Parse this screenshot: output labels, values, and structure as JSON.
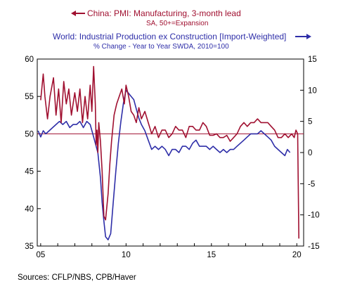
{
  "chart_data": {
    "type": "line",
    "title": "",
    "legend": {
      "placement": "top",
      "entries": [
        {
          "name": "China: PMI: Manufacturing, 3-month lead",
          "subtitle": "SA, 50+=Expansion",
          "color": "#a01030",
          "arrow": "left",
          "axis": "left"
        },
        {
          "name": "World: Industrial Production ex Construction [Import-Weighted]",
          "subtitle": "% Change - Year to Year   SWDA, 2010=100",
          "color": "#2e2ea8",
          "arrow": "right",
          "axis": "right"
        }
      ]
    },
    "x_axis": {
      "ticks": [
        "05",
        "10",
        "15",
        "20"
      ],
      "tick_values": [
        2005,
        2010,
        2015,
        2020
      ],
      "range": [
        2004.8,
        2020.4
      ]
    },
    "y_left": {
      "range": [
        35,
        60
      ],
      "ticks": [
        35,
        40,
        45,
        50,
        55,
        60
      ]
    },
    "y_right": {
      "range": [
        -15,
        15
      ],
      "ticks": [
        -15,
        -10,
        -5,
        0,
        5,
        10,
        15
      ]
    },
    "reference_line": {
      "axis": "left",
      "value": 50,
      "color": "#a01030"
    },
    "series": [
      {
        "name": "China: PMI: Manufacturing, 3-month lead",
        "axis": "left",
        "color": "#a01030",
        "x": [
          2005.0,
          2005.15,
          2005.25,
          2005.4,
          2005.55,
          2005.75,
          2005.9,
          2006.05,
          2006.2,
          2006.35,
          2006.5,
          2006.65,
          2006.8,
          2007.0,
          2007.15,
          2007.3,
          2007.45,
          2007.6,
          2007.75,
          2007.9,
          2008.0,
          2008.1,
          2008.2,
          2008.25,
          2008.3,
          2008.35,
          2008.4,
          2008.5,
          2008.6,
          2008.7,
          2008.8,
          2008.95,
          2009.05,
          2009.15,
          2009.3,
          2009.45,
          2009.6,
          2009.75,
          2009.9,
          2010.0,
          2010.15,
          2010.3,
          2010.45,
          2010.6,
          2010.75,
          2010.9,
          2011.1,
          2011.3,
          2011.5,
          2011.7,
          2011.9,
          2012.1,
          2012.3,
          2012.5,
          2012.7,
          2012.9,
          2013.1,
          2013.3,
          2013.5,
          2013.7,
          2013.9,
          2014.1,
          2014.3,
          2014.5,
          2014.7,
          2014.9,
          2015.1,
          2015.3,
          2015.5,
          2015.7,
          2015.9,
          2016.1,
          2016.3,
          2016.5,
          2016.7,
          2016.9,
          2017.1,
          2017.3,
          2017.5,
          2017.7,
          2017.9,
          2018.1,
          2018.3,
          2018.5,
          2018.7,
          2018.9,
          2019.1,
          2019.3,
          2019.5,
          2019.7,
          2019.85,
          2019.95,
          2020.05,
          2020.12
        ],
        "y": [
          54.5,
          58.0,
          55.0,
          52.0,
          55.0,
          57.5,
          52.5,
          56.0,
          51.5,
          57.0,
          54.0,
          56.0,
          52.5,
          55.5,
          53.0,
          56.0,
          51.5,
          55.0,
          52.0,
          56.5,
          53.0,
          59.0,
          54.0,
          48.5,
          50.5,
          47.5,
          51.5,
          49.0,
          45.0,
          39.0,
          38.5,
          42.0,
          46.0,
          49.0,
          52.5,
          54.0,
          55.0,
          56.0,
          54.0,
          56.5,
          55.0,
          53.0,
          52.5,
          51.5,
          53.5,
          52.0,
          53.0,
          51.5,
          50.0,
          51.0,
          49.5,
          50.5,
          50.5,
          49.5,
          50.0,
          51.0,
          50.5,
          50.5,
          49.5,
          51.0,
          51.0,
          50.5,
          50.5,
          51.5,
          51.0,
          49.8,
          49.8,
          50.0,
          49.5,
          49.5,
          49.8,
          49.0,
          49.5,
          50.0,
          51.0,
          51.5,
          51.0,
          51.5,
          51.5,
          52.0,
          51.5,
          51.5,
          51.5,
          51.0,
          50.5,
          49.5,
          49.5,
          50.0,
          49.5,
          50.0,
          49.5,
          50.5,
          50.0,
          36.0
        ]
      },
      {
        "name": "World: Industrial Production ex Construction [Import-Weighted]",
        "axis": "right",
        "color": "#2e2ea8",
        "x": [
          2004.85,
          2005.0,
          2005.15,
          2005.3,
          2005.5,
          2005.7,
          2005.9,
          2006.1,
          2006.3,
          2006.5,
          2006.7,
          2006.9,
          2007.1,
          2007.3,
          2007.5,
          2007.7,
          2007.9,
          2008.05,
          2008.2,
          2008.35,
          2008.5,
          2008.6,
          2008.7,
          2008.8,
          2008.95,
          2009.1,
          2009.25,
          2009.4,
          2009.55,
          2009.7,
          2009.85,
          2010.0,
          2010.15,
          2010.3,
          2010.45,
          2010.6,
          2010.75,
          2010.9,
          2011.1,
          2011.3,
          2011.5,
          2011.7,
          2011.9,
          2012.1,
          2012.3,
          2012.5,
          2012.7,
          2012.9,
          2013.1,
          2013.3,
          2013.5,
          2013.7,
          2013.9,
          2014.1,
          2014.3,
          2014.5,
          2014.7,
          2014.9,
          2015.1,
          2015.3,
          2015.5,
          2015.7,
          2015.9,
          2016.1,
          2016.3,
          2016.5,
          2016.7,
          2016.9,
          2017.1,
          2017.3,
          2017.5,
          2017.7,
          2017.9,
          2018.1,
          2018.3,
          2018.5,
          2018.7,
          2018.9,
          2019.1,
          2019.3,
          2019.45,
          2019.6
        ],
        "y": [
          3.5,
          2.5,
          3.5,
          3.0,
          3.5,
          4.0,
          4.5,
          5.0,
          4.5,
          5.0,
          4.0,
          4.5,
          4.5,
          5.0,
          4.0,
          5.0,
          4.5,
          3.0,
          1.5,
          0.0,
          -4.0,
          -8.0,
          -11.0,
          -13.5,
          -14.0,
          -13.0,
          -8.0,
          -3.0,
          1.5,
          5.0,
          8.0,
          10.0,
          9.5,
          9.0,
          8.5,
          7.0,
          5.5,
          4.5,
          3.5,
          2.0,
          0.5,
          1.0,
          0.5,
          1.0,
          0.5,
          -0.5,
          0.5,
          0.5,
          0.0,
          1.0,
          1.0,
          0.5,
          1.5,
          2.0,
          1.0,
          1.0,
          1.0,
          0.5,
          1.0,
          0.5,
          0.0,
          0.5,
          0.0,
          0.5,
          0.5,
          1.0,
          1.5,
          2.0,
          2.5,
          3.0,
          3.0,
          3.0,
          3.5,
          3.0,
          2.5,
          2.0,
          1.0,
          0.5,
          0.0,
          -0.5,
          0.5,
          0.0
        ]
      }
    ],
    "source": "Sources:  CFLP/NBS, CPB/Haver"
  }
}
